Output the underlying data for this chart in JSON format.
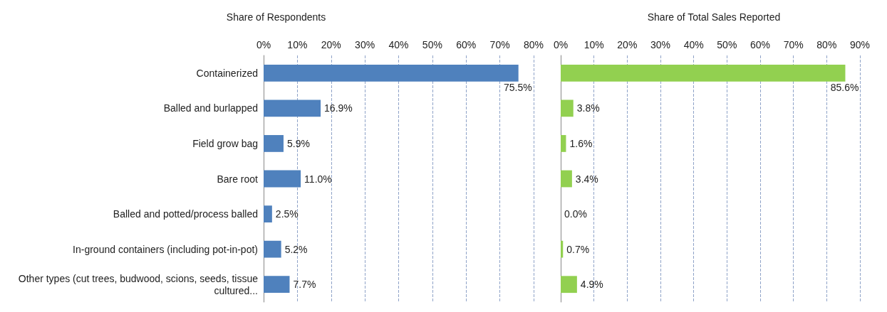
{
  "chart_data": [
    {
      "type": "bar",
      "orientation": "horizontal",
      "title": "Share of Respondents",
      "categories": [
        "Containerized",
        "Balled and burlapped",
        "Field grow bag",
        "Bare root",
        "Balled and potted/process balled",
        "In-ground containers (including pot-in-pot)",
        "Other types (cut trees, budwood, scions, seeds, tissue cultured..."
      ],
      "values": [
        75.5,
        16.9,
        5.9,
        11.0,
        2.5,
        5.2,
        7.7
      ],
      "color": "#4f81bd",
      "value_labels": [
        "75.5%",
        "16.9%",
        "5.9%",
        "11.0%",
        "2.5%",
        "5.2%",
        "7.7%"
      ],
      "xlim": [
        0,
        80
      ],
      "xticks": [
        {
          "value": 0,
          "label": "0%"
        },
        {
          "value": 10,
          "label": "10%"
        },
        {
          "value": 20,
          "label": "20%"
        },
        {
          "value": 30,
          "label": "30%"
        },
        {
          "value": 40,
          "label": "40%"
        },
        {
          "value": 50,
          "label": "50%"
        },
        {
          "value": 60,
          "label": "60%"
        },
        {
          "value": 70,
          "label": "70%"
        },
        {
          "value": 80,
          "label": "80%"
        }
      ],
      "grid": "x"
    },
    {
      "type": "bar",
      "orientation": "horizontal",
      "title": "Share of Total Sales Reported",
      "categories": [
        null,
        null,
        null,
        null,
        null,
        null,
        null
      ],
      "values": [
        85.6,
        3.8,
        1.6,
        3.4,
        0.0,
        0.7,
        4.9
      ],
      "color": "#92d050",
      "value_labels": [
        "85.6%",
        "3.8%",
        "1.6%",
        "3.4%",
        "0.0%",
        "0.7%",
        "4.9%"
      ],
      "xlim": [
        0,
        90
      ],
      "xticks": [
        {
          "value": 0,
          "label": "0%"
        },
        {
          "value": 10,
          "label": "10%"
        },
        {
          "value": 20,
          "label": "20%"
        },
        {
          "value": 30,
          "label": "30%"
        },
        {
          "value": 40,
          "label": "40%"
        },
        {
          "value": 50,
          "label": "50%"
        },
        {
          "value": 60,
          "label": "60%"
        },
        {
          "value": 70,
          "label": "70%"
        },
        {
          "value": 80,
          "label": "80%"
        },
        {
          "value": 90,
          "label": "90%"
        }
      ],
      "grid": "x",
      "tick_labels": "x"
    }
  ]
}
